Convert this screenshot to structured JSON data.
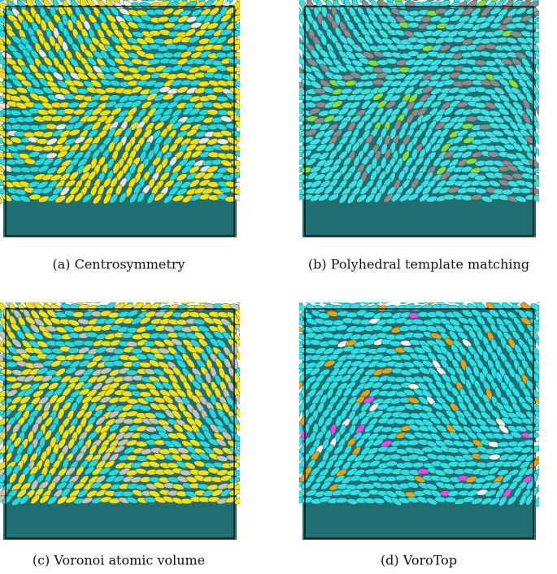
{
  "panels": [
    {
      "caption": "(a) Centrosymmetry"
    },
    {
      "caption": "(b) Polyhedral template matching"
    },
    {
      "caption": "(c) Voronoi atomic volume"
    },
    {
      "caption": "(d) VoroTop"
    }
  ]
}
